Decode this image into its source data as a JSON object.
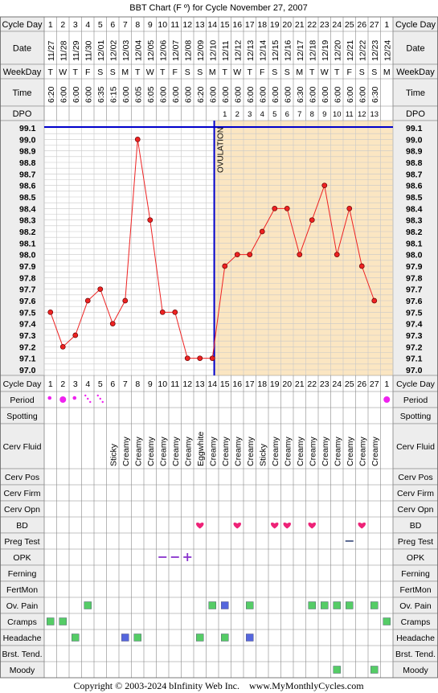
{
  "title": "BBT Chart (F º) for Cycle November 27, 2007",
  "footer": "Copyright © 2003-2024 bInfinity Web Inc.    www.MyMonthlyCycles.com",
  "ovulation_label": "OVULATION",
  "row_labels": {
    "cycle_day": "Cycle Day",
    "date": "Date",
    "weekday": "WeekDay",
    "time": "Time",
    "dpo": "DPO",
    "period": "Period",
    "spotting": "Spotting",
    "cerv_fluid": "Cerv Fluid",
    "cerv_pos": "Cerv Pos",
    "cerv_firm": "Cerv Firm",
    "cerv_opn": "Cerv Opn",
    "bd": "BD",
    "preg_test": "Preg Test",
    "opk": "OPK",
    "ferning": "Ferning",
    "fertmon": "FertMon",
    "ov_pain": "Ov. Pain",
    "cramps": "Cramps",
    "headache": "Headache",
    "brst_tend": "Brst. Tend.",
    "moody": "Moody"
  },
  "colors": {
    "line": "#ee2222",
    "point": "#ee2222",
    "ovulation_line": "#0000cc",
    "luteal_bg": "#fbe6c2",
    "follicular_bg": "#ffffff",
    "grid": "#c8c8c8",
    "header_bg": "#ededed",
    "period_dot": "#ee22ee",
    "heart": "#ee2277",
    "green_box": "#55cc66",
    "blue_box": "#5566dd",
    "opk": "#8833cc"
  },
  "chart_data": {
    "type": "line",
    "title": "BBT Chart (F º) for Cycle November 27, 2007",
    "ylim": [
      97.0,
      99.1
    ],
    "yticks": [
      "99.1",
      "99.0",
      "98.9",
      "98.8",
      "98.7",
      "98.6",
      "98.5",
      "98.4",
      "98.3",
      "98.2",
      "98.1",
      "98.0",
      "97.9",
      "97.8",
      "97.7",
      "97.6",
      "97.5",
      "97.4",
      "97.3",
      "97.2",
      "97.1",
      "97.0"
    ],
    "cycle_days": [
      "1",
      "2",
      "3",
      "4",
      "5",
      "6",
      "7",
      "8",
      "9",
      "10",
      "11",
      "12",
      "13",
      "14",
      "15",
      "16",
      "17",
      "18",
      "19",
      "20",
      "21",
      "22",
      "23",
      "24",
      "25",
      "26",
      "27",
      "1"
    ],
    "dates": [
      "11/27",
      "11/28",
      "11/29",
      "11/30",
      "12/01",
      "12/02",
      "12/03",
      "12/04",
      "12/05",
      "12/06",
      "12/07",
      "12/08",
      "12/09",
      "12/10",
      "12/11",
      "12/12",
      "12/13",
      "12/14",
      "12/15",
      "12/16",
      "12/17",
      "12/18",
      "12/19",
      "12/20",
      "12/21",
      "12/22",
      "12/23",
      "12/24"
    ],
    "weekdays": [
      "T",
      "W",
      "T",
      "F",
      "S",
      "S",
      "M",
      "T",
      "W",
      "T",
      "F",
      "S",
      "S",
      "M",
      "T",
      "W",
      "T",
      "F",
      "S",
      "S",
      "M",
      "T",
      "W",
      "T",
      "F",
      "S",
      "S",
      "M"
    ],
    "times": [
      "6:20",
      "6:00",
      "6:00",
      "6:00",
      "6:35",
      "6:15",
      "6:00",
      "6:05",
      "6:05",
      "6:00",
      "6:00",
      "6:00",
      "6:20",
      "6:00",
      "6:00",
      "6:00",
      "6:00",
      "6:00",
      "6:00",
      "6:00",
      "6:30",
      "6:00",
      "6:00",
      "6:00",
      "6:00",
      "6:00",
      "6:30",
      ""
    ],
    "dpo": [
      "",
      "",
      "",
      "",
      "",
      "",
      "",
      "",
      "",
      "",
      "",
      "",
      "",
      "",
      "1",
      "2",
      "3",
      "4",
      "5",
      "6",
      "7",
      "8",
      "9",
      "10",
      "11",
      "12",
      "13",
      ""
    ],
    "temps": [
      97.5,
      97.2,
      97.3,
      97.6,
      97.7,
      97.4,
      97.6,
      99.0,
      98.3,
      97.5,
      97.5,
      97.1,
      97.1,
      97.1,
      97.9,
      98.0,
      98.0,
      98.2,
      98.4,
      98.4,
      98.0,
      98.3,
      98.6,
      98.0,
      98.4,
      97.9,
      97.6,
      null
    ],
    "coverline": 99.1,
    "ovulation_after_day_index": 13,
    "period": [
      "dot-small",
      "dot-big",
      "dot-small",
      "dots",
      "dots",
      "",
      "",
      "",
      "",
      "",
      "",
      "",
      "",
      "",
      "",
      "",
      "",
      "",
      "",
      "",
      "",
      "",
      "",
      "",
      "",
      "",
      "",
      "dot-big"
    ],
    "cerv_fluid": [
      "",
      "",
      "",
      "",
      "",
      "Sticky",
      "Creamy",
      "Creamy",
      "Creamy",
      "Creamy",
      "Creamy",
      "Creamy",
      "Eggwhite",
      "Creamy",
      "Creamy",
      "Creamy",
      "Creamy",
      "Sticky",
      "Creamy",
      "Creamy",
      "Creamy",
      "Creamy",
      "Creamy",
      "Creamy",
      "Creamy",
      "Creamy",
      "Creamy",
      ""
    ],
    "bd": [
      13,
      16,
      19,
      20,
      22,
      26
    ],
    "preg_test": [
      25
    ],
    "opk": [
      {
        "day": 10,
        "symbol": "–"
      },
      {
        "day": 11,
        "symbol": "–"
      },
      {
        "day": 12,
        "symbol": "+"
      }
    ],
    "ov_pain": [
      {
        "day": 4,
        "color": "green"
      },
      {
        "day": 14,
        "color": "green"
      },
      {
        "day": 15,
        "color": "blue"
      },
      {
        "day": 17,
        "color": "green"
      },
      {
        "day": 22,
        "color": "green"
      },
      {
        "day": 23,
        "color": "green"
      },
      {
        "day": 24,
        "color": "green"
      },
      {
        "day": 25,
        "color": "green"
      },
      {
        "day": 27,
        "color": "green"
      }
    ],
    "cramps": [
      {
        "day": 1,
        "color": "green"
      },
      {
        "day": 2,
        "color": "green"
      },
      {
        "day": 28,
        "color": "green"
      }
    ],
    "headache": [
      {
        "day": 3,
        "color": "green"
      },
      {
        "day": 7,
        "color": "blue"
      },
      {
        "day": 8,
        "color": "green"
      },
      {
        "day": 13,
        "color": "green"
      },
      {
        "day": 15,
        "color": "green"
      },
      {
        "day": 17,
        "color": "blue"
      }
    ],
    "moody": [
      {
        "day": 24,
        "color": "green"
      },
      {
        "day": 27,
        "color": "green"
      }
    ]
  }
}
